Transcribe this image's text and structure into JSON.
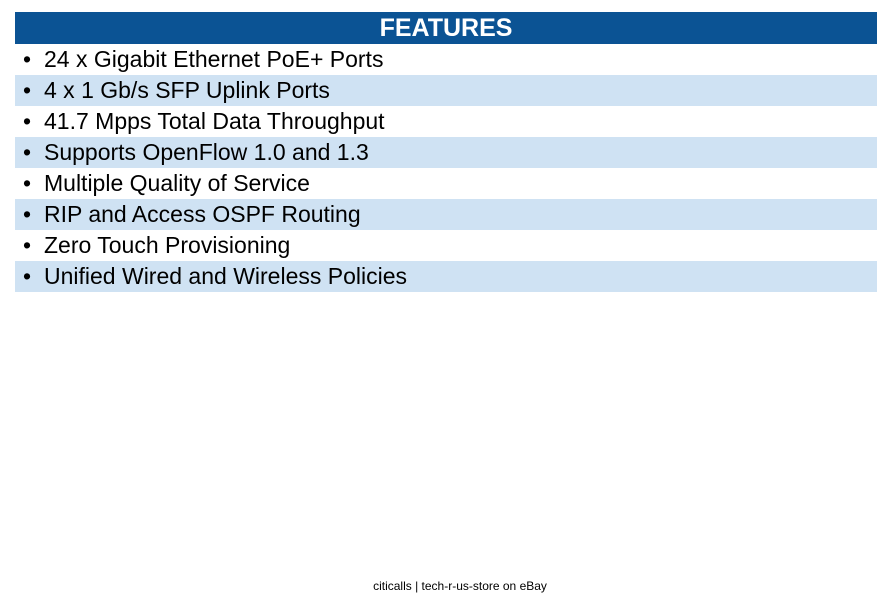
{
  "colors": {
    "header_background": "#0b5394",
    "header_text": "#ffffff",
    "stripe": "#cfe2f3",
    "row_plain": "#ffffff"
  },
  "features": {
    "title": "FEATURES",
    "bullet": "•",
    "items": [
      "24 x Gigabit Ethernet PoE+ Ports",
      "4 x 1 Gb/s SFP Uplink Ports",
      "41.7 Mpps Total Data Throughput",
      "Supports OpenFlow 1.0 and 1.3",
      "Multiple Quality of Service",
      "RIP and Access OSPF Routing",
      "Zero Touch Provisioning",
      "Unified Wired and Wireless Policies"
    ]
  },
  "footer": {
    "text": "citicalls | tech-r-us-store on eBay"
  }
}
